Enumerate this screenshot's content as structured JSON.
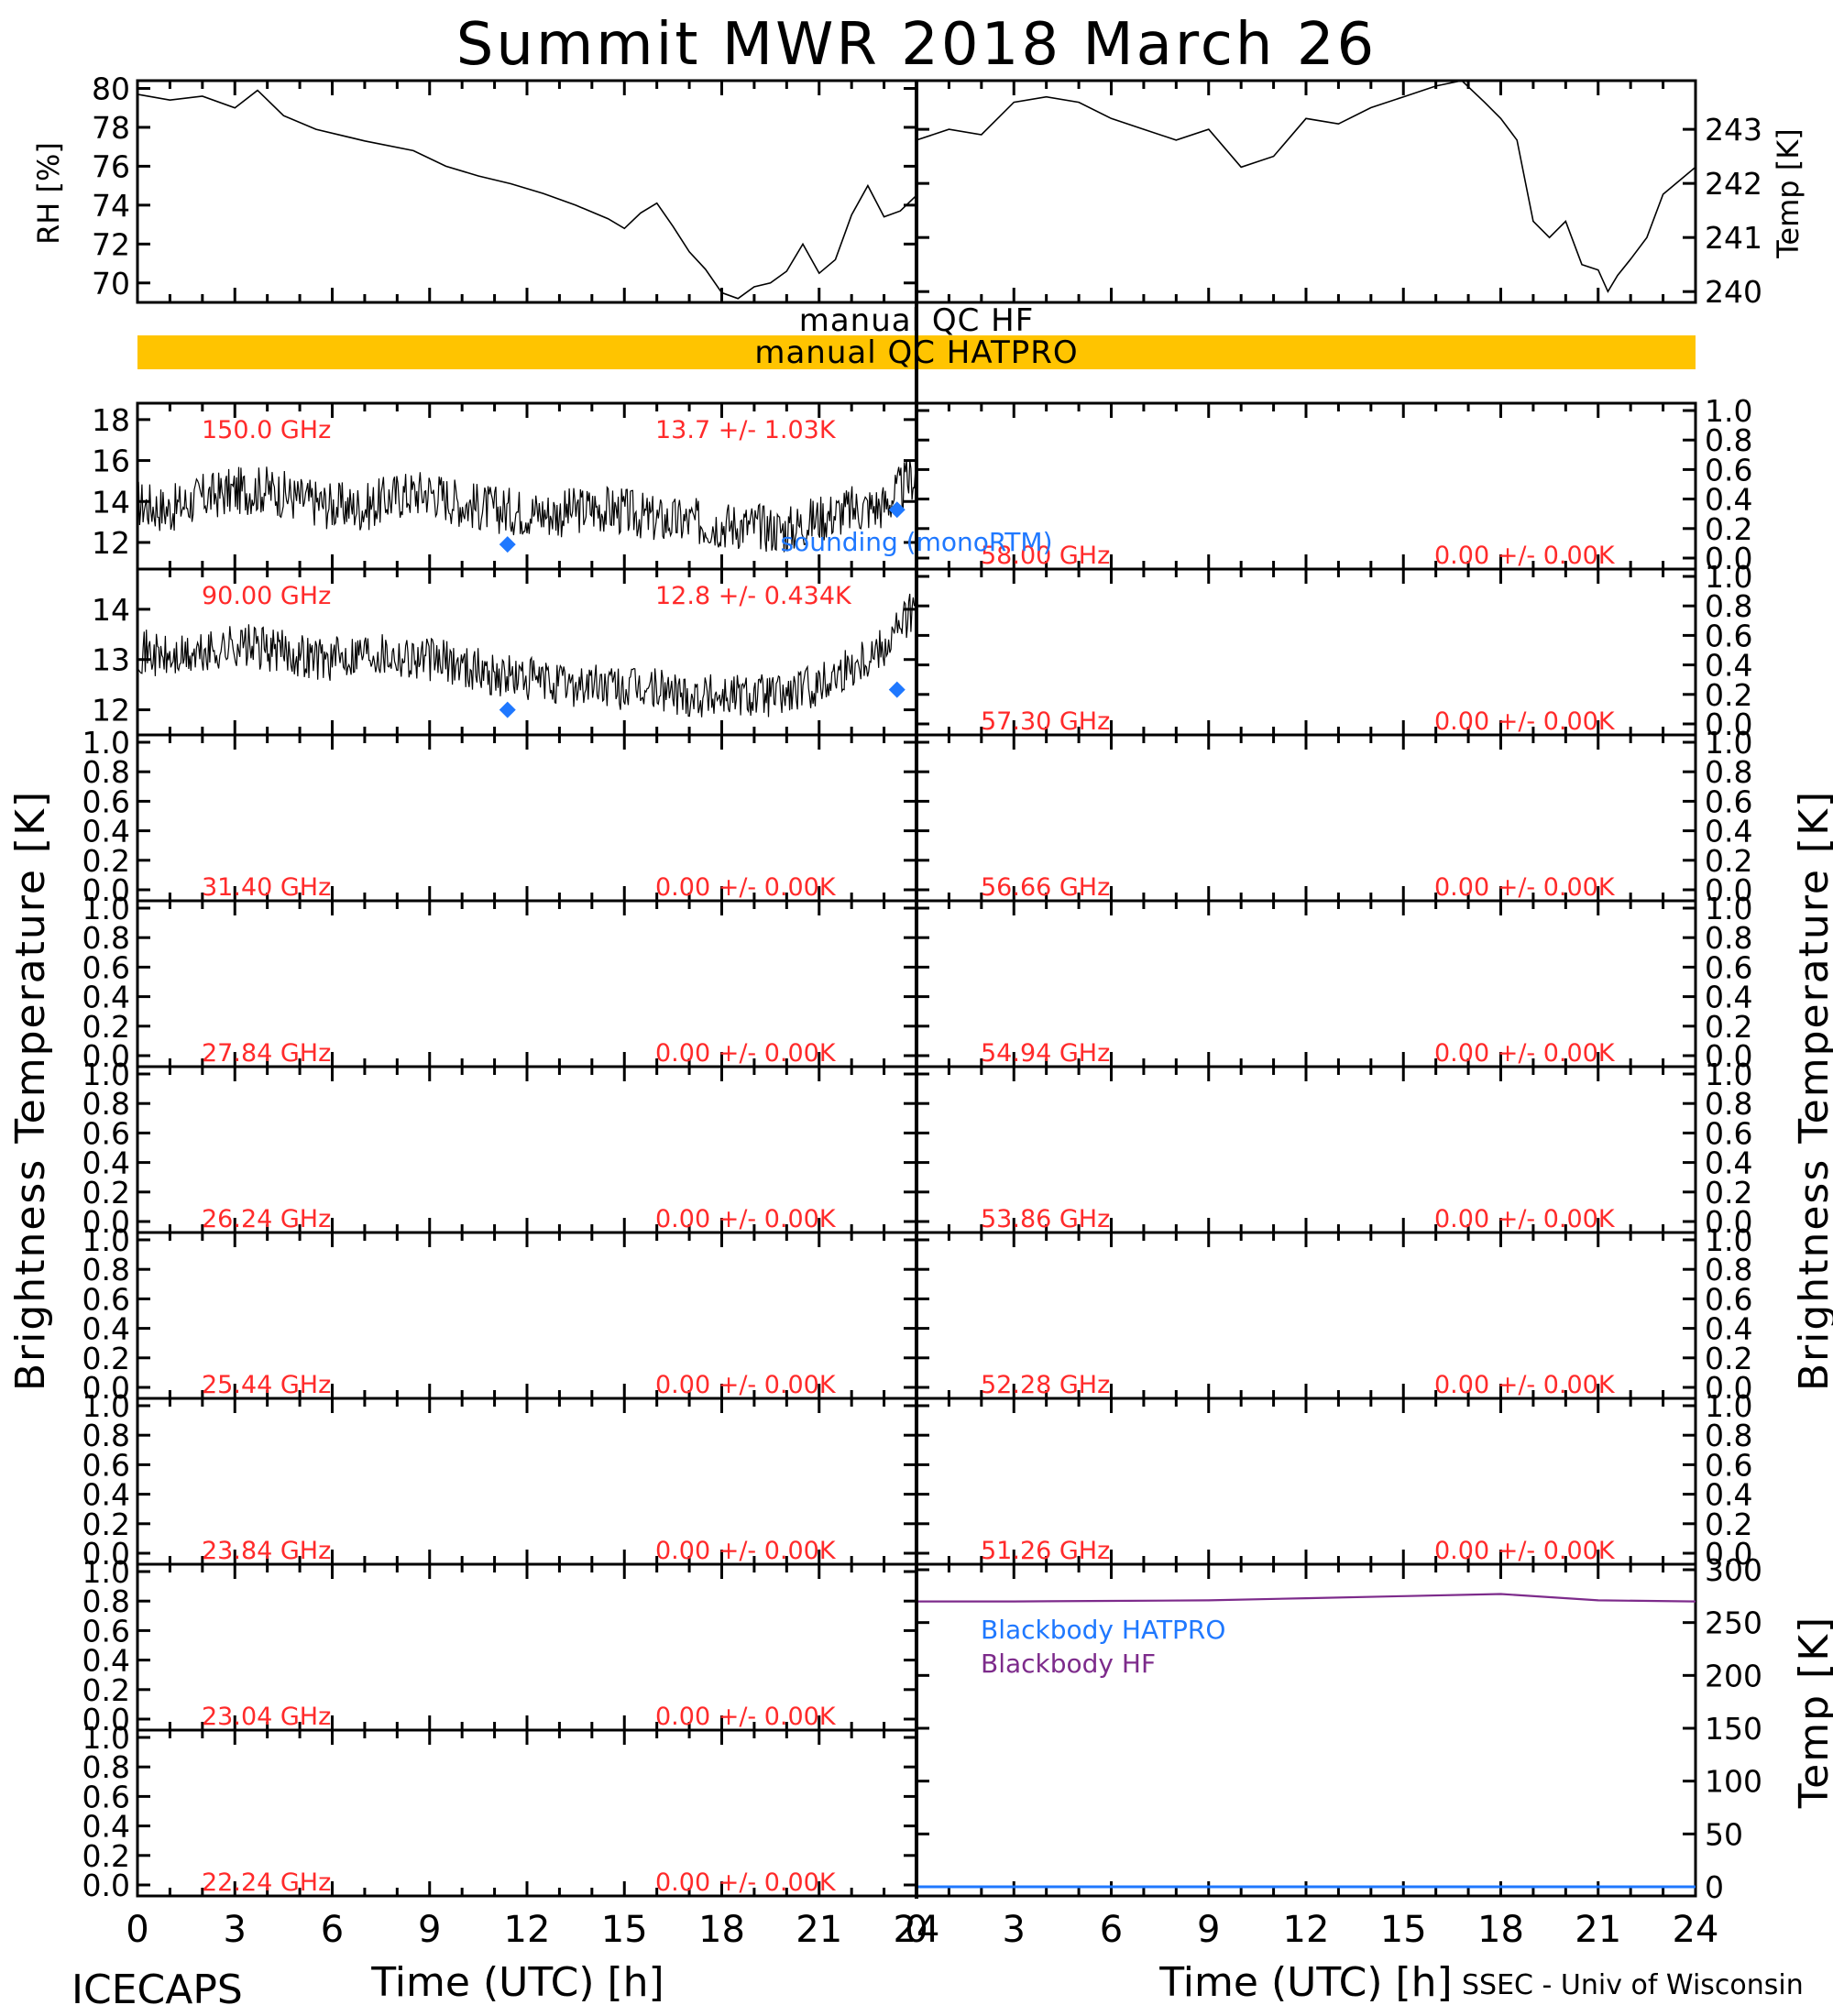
{
  "title": "Summit MWR 2018 March 26",
  "footer": {
    "left": "ICECAPS",
    "right": "SSEC - Univ of Wisconsin",
    "xlabel": "Time (UTC) [h]"
  },
  "qc": {
    "hf_label": "manual QC HF",
    "hatpro_label": "manual QC HATPRO",
    "hatpro_bar_color": "#ffc400"
  },
  "colors": {
    "label_red": "#ff2a2a",
    "sounding_blue": "#1f78ff",
    "blackbody_hf": "#7d2b8b",
    "blackbody_hatpro": "#1f78ff"
  },
  "chart_data": [
    {
      "id": "rh",
      "type": "line",
      "ylabel": "RH [%]",
      "xlim": [
        0,
        24
      ],
      "ylim": [
        69,
        80.4
      ],
      "yticks": [
        70,
        72,
        74,
        76,
        78,
        80
      ],
      "series": [
        {
          "x": [
            0,
            1,
            2,
            3,
            3.7,
            4.5,
            5.5,
            7,
            8.5,
            9.5,
            10.5,
            11.5,
            12.5,
            13.5,
            14.5,
            15,
            15.5,
            16,
            16.5,
            17,
            17.5,
            18,
            18.5,
            19,
            19.5,
            20,
            20.5,
            21,
            21.5,
            22,
            22.5,
            23,
            23.5,
            24
          ],
          "y": [
            79.7,
            79.4,
            79.6,
            79.0,
            79.9,
            78.6,
            77.9,
            77.3,
            76.8,
            76.0,
            75.5,
            75.1,
            74.6,
            74.0,
            73.3,
            72.8,
            73.6,
            74.1,
            72.9,
            71.6,
            70.7,
            69.5,
            69.2,
            69.8,
            70.0,
            70.6,
            72.0,
            70.5,
            71.2,
            73.5,
            75.0,
            73.4,
            73.7,
            74.5
          ]
        }
      ]
    },
    {
      "id": "temp",
      "type": "line",
      "ylabel": "Temp [K]",
      "xlim": [
        0,
        24
      ],
      "ylim": [
        239.8,
        243.9
      ],
      "yticks": [
        240,
        241,
        242,
        243
      ],
      "series": [
        {
          "x": [
            0,
            1,
            2,
            3,
            4,
            5,
            6,
            7,
            8,
            9,
            10,
            11,
            12,
            13,
            14,
            15,
            16,
            16.8,
            17.5,
            18,
            18.5,
            19,
            19.5,
            20,
            20.5,
            21,
            21.3,
            21.6,
            22,
            22.5,
            23,
            24
          ],
          "y": [
            242.8,
            243.0,
            242.9,
            243.5,
            243.6,
            243.5,
            243.2,
            243.0,
            242.8,
            243.0,
            242.3,
            242.5,
            243.2,
            243.1,
            243.4,
            243.6,
            243.8,
            243.9,
            243.5,
            243.2,
            242.8,
            241.3,
            241.0,
            241.3,
            240.5,
            240.4,
            240.0,
            240.3,
            240.6,
            241.0,
            241.8,
            242.3
          ]
        }
      ]
    },
    {
      "id": "tb-150",
      "type": "scatter",
      "label": "150.0 GHz",
      "stat": "13.7 +/-  1.03K",
      "xlim": [
        0,
        24
      ],
      "ylim": [
        10.7,
        18.8
      ],
      "yticks": [
        12,
        14,
        16,
        18
      ],
      "x": [
        0,
        1,
        2,
        3,
        4,
        5,
        6,
        7,
        8,
        9,
        10,
        11,
        12,
        13,
        14,
        15,
        16,
        17,
        18,
        19,
        20,
        21,
        22,
        23,
        24
      ],
      "y": [
        13.9,
        13.6,
        14.2,
        14.5,
        14.6,
        14.1,
        13.8,
        13.7,
        14.3,
        14.5,
        13.9,
        13.6,
        13.5,
        13.4,
        13.7,
        13.5,
        13.1,
        13.0,
        12.9,
        12.8,
        12.6,
        13.2,
        13.6,
        13.8,
        15.4
      ],
      "sounding": {
        "label": "sounding (monoRTM)",
        "x": [
          11.4,
          23.4
        ],
        "y": [
          11.9,
          13.6
        ]
      }
    },
    {
      "id": "tb-90",
      "type": "scatter",
      "label": "90.00 GHz",
      "stat": "12.8 +/- 0.434K",
      "xlim": [
        0,
        24
      ],
      "ylim": [
        11.5,
        14.8
      ],
      "yticks": [
        12,
        13,
        14
      ],
      "x": [
        0,
        1,
        2,
        3,
        4,
        5,
        6,
        7,
        8,
        9,
        10,
        11,
        12,
        13,
        14,
        15,
        16,
        17,
        18,
        19,
        20,
        21,
        22,
        23,
        24
      ],
      "y": [
        13.2,
        13.0,
        13.1,
        13.3,
        13.2,
        13.1,
        13.0,
        13.2,
        13.1,
        13.0,
        12.9,
        12.7,
        12.6,
        12.5,
        12.5,
        12.4,
        12.4,
        12.3,
        12.3,
        12.3,
        12.3,
        12.5,
        12.9,
        13.3,
        14.1
      ],
      "sounding": {
        "x": [
          11.4,
          23.4
        ],
        "y": [
          12.0,
          12.4
        ]
      }
    },
    {
      "id": "tb-empty",
      "type": "scatter",
      "ylabel": "Brightness Temperature [K]",
      "xlim": [
        0,
        24
      ],
      "ylim": [
        0,
        1
      ],
      "yticks": [
        "0.0",
        "0.2",
        "0.4",
        "0.6",
        "0.8",
        "1.0"
      ],
      "left_panels": [
        {
          "label": "31.40 GHz",
          "stat": "0.00 +/-  0.00K"
        },
        {
          "label": "27.84 GHz",
          "stat": "0.00 +/-  0.00K"
        },
        {
          "label": "26.24 GHz",
          "stat": "0.00 +/-  0.00K"
        },
        {
          "label": "25.44 GHz",
          "stat": "0.00 +/-  0.00K"
        },
        {
          "label": "23.84 GHz",
          "stat": "0.00 +/-  0.00K"
        },
        {
          "label": "23.04 GHz",
          "stat": "0.00 +/-  0.00K"
        },
        {
          "label": "22.24 GHz",
          "stat": "0.00 +/-  0.00K"
        }
      ],
      "right_panels": [
        {
          "label": "58.00 GHz",
          "stat": "0.00 +/-  0.00K"
        },
        {
          "label": "57.30 GHz",
          "stat": "0.00 +/-  0.00K"
        },
        {
          "label": "56.66 GHz",
          "stat": "0.00 +/-  0.00K"
        },
        {
          "label": "54.94 GHz",
          "stat": "0.00 +/-  0.00K"
        },
        {
          "label": "53.86 GHz",
          "stat": "0.00 +/-  0.00K"
        },
        {
          "label": "52.28 GHz",
          "stat": "0.00 +/-  0.00K"
        },
        {
          "label": "51.26 GHz",
          "stat": "0.00 +/-  0.00K"
        }
      ]
    },
    {
      "id": "blackbody",
      "type": "line",
      "ylabel": "Temp [K]",
      "xlim": [
        0,
        24
      ],
      "ylim": [
        0,
        300
      ],
      "yticks": [
        0,
        50,
        100,
        150,
        200,
        250,
        300
      ],
      "series": [
        {
          "name": "Blackbody HATPRO",
          "x": [
            0,
            24
          ],
          "y": [
            0,
            0
          ]
        },
        {
          "name": "Blackbody HF",
          "x": [
            0,
            3,
            6,
            9,
            12,
            15,
            18,
            21,
            24
          ],
          "y": [
            270,
            270,
            270.5,
            271,
            273,
            275,
            277,
            271,
            270
          ]
        }
      ]
    }
  ],
  "xticks": [
    "0",
    "3",
    "6",
    "9",
    "12",
    "15",
    "18",
    "21",
    "24"
  ]
}
